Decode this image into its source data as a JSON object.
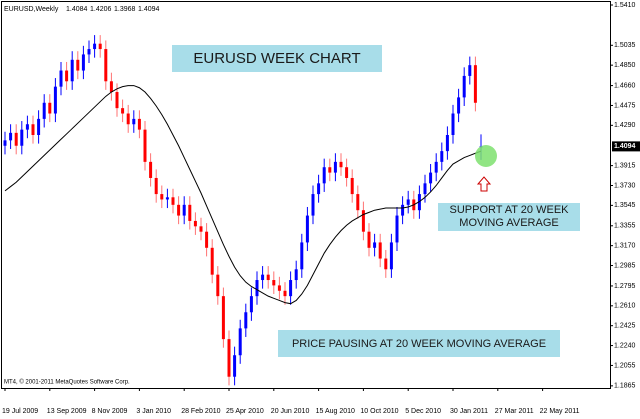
{
  "chart_data": {
    "type": "candlestick",
    "title": "EURUSD,Weekly",
    "annotations": [
      "EURUSD WEEK CHART",
      "SUPPORT AT 20 WEEK",
      "MOVING AVERAGE",
      "PRICE PAUSING AT 20 WEEK MOVING AVERAGE"
    ],
    "copyright": "MT4, © 2001-2011 MetaQuotes Software Corp.",
    "up_color": "#0000ff",
    "down_color": "#ff0000",
    "ma_color": "#000000",
    "categories": [
      "19 Jul 2009",
      null,
      null,
      null,
      null,
      null,
      null,
      null,
      "13 Sep 2009",
      null,
      null,
      null,
      null,
      null,
      null,
      null,
      "8 Nov 2009",
      null,
      null,
      null,
      null,
      null,
      null,
      null,
      "3 Jan 2010",
      null,
      null,
      null,
      null,
      null,
      null,
      null,
      "28 Feb 2010",
      null,
      null,
      null,
      null,
      null,
      null,
      null,
      "25 Apr 2010",
      null,
      null,
      null,
      null,
      null,
      null,
      null,
      "20 Jun 2010",
      null,
      null,
      null,
      null,
      null,
      null,
      null,
      "15 Aug 2010",
      null,
      null,
      null,
      null,
      null,
      null,
      null,
      "10 Oct 2010",
      null,
      null,
      null,
      null,
      null,
      null,
      null,
      "5 Dec 2010",
      null,
      null,
      null,
      null,
      null,
      null,
      null,
      "30 Jan 2011",
      null,
      null,
      null,
      null,
      null,
      null,
      null,
      "27 Mar 2011",
      null,
      null,
      null,
      null,
      null,
      null,
      null,
      "22 May 2011"
    ],
    "open": [
      1.41,
      1.415,
      1.422,
      1.41,
      1.425,
      1.43,
      1.42,
      1.435,
      1.45,
      1.44,
      1.465,
      1.48,
      1.47,
      1.49,
      1.48,
      1.495,
      1.5,
      1.505,
      1.5,
      1.47,
      1.46,
      1.445,
      1.44,
      1.43,
      1.435,
      1.425,
      1.395,
      1.38,
      1.365,
      1.36,
      1.362,
      1.355,
      1.345,
      1.355,
      1.34,
      1.335,
      1.33,
      1.315,
      1.29,
      1.27,
      1.23,
      1.195,
      1.215,
      1.24,
      1.255,
      1.27,
      1.285,
      1.29,
      1.285,
      1.28,
      1.275,
      1.27,
      1.285,
      1.295,
      1.32,
      1.345,
      1.365,
      1.375,
      1.39,
      1.385,
      1.395,
      1.39,
      1.38,
      1.365,
      1.35,
      1.33,
      1.315,
      1.32,
      1.305,
      1.295,
      1.32,
      1.345,
      1.355,
      1.36,
      1.35,
      1.365,
      1.375,
      1.385,
      1.395,
      1.405,
      1.42,
      1.44,
      1.455,
      1.475,
      1.485,
      1.4084,
      null,
      null,
      null,
      null,
      null,
      null,
      null,
      null,
      null,
      null,
      null
    ],
    "high": [
      1.423,
      1.43,
      1.43,
      1.433,
      1.438,
      1.438,
      1.443,
      1.458,
      1.458,
      1.473,
      1.488,
      1.488,
      1.498,
      1.498,
      1.503,
      1.508,
      1.513,
      1.513,
      1.508,
      1.478,
      1.468,
      1.453,
      1.448,
      1.443,
      1.443,
      1.433,
      1.403,
      1.388,
      1.373,
      1.37,
      1.37,
      1.363,
      1.363,
      1.363,
      1.348,
      1.343,
      1.338,
      1.323,
      1.298,
      1.278,
      1.238,
      1.223,
      1.248,
      1.263,
      1.278,
      1.293,
      1.298,
      1.298,
      1.293,
      1.288,
      1.283,
      1.293,
      1.303,
      1.328,
      1.353,
      1.373,
      1.383,
      1.398,
      1.398,
      1.403,
      1.403,
      1.398,
      1.388,
      1.373,
      1.358,
      1.338,
      1.328,
      1.328,
      1.313,
      1.328,
      1.353,
      1.363,
      1.368,
      1.368,
      1.373,
      1.383,
      1.393,
      1.403,
      1.413,
      1.428,
      1.448,
      1.463,
      1.483,
      1.493,
      1.493,
      1.4206,
      null,
      null,
      null,
      null,
      null,
      null,
      null,
      null,
      null,
      null,
      null
    ],
    "low": [
      1.402,
      1.407,
      1.402,
      1.402,
      1.417,
      1.412,
      1.412,
      1.427,
      1.432,
      1.432,
      1.457,
      1.462,
      1.462,
      1.472,
      1.472,
      1.487,
      1.492,
      1.492,
      1.462,
      1.452,
      1.437,
      1.432,
      1.422,
      1.422,
      1.417,
      1.387,
      1.372,
      1.357,
      1.352,
      1.352,
      1.347,
      1.337,
      1.337,
      1.332,
      1.327,
      1.322,
      1.307,
      1.282,
      1.262,
      1.222,
      1.187,
      1.187,
      1.207,
      1.232,
      1.247,
      1.262,
      1.277,
      1.277,
      1.272,
      1.267,
      1.262,
      1.262,
      1.277,
      1.287,
      1.312,
      1.337,
      1.357,
      1.367,
      1.377,
      1.377,
      1.382,
      1.372,
      1.357,
      1.342,
      1.322,
      1.307,
      1.307,
      1.297,
      1.287,
      1.287,
      1.312,
      1.337,
      1.347,
      1.342,
      1.342,
      1.357,
      1.367,
      1.377,
      1.387,
      1.397,
      1.412,
      1.432,
      1.447,
      1.467,
      1.442,
      1.3968,
      null,
      null,
      null,
      null,
      null,
      null,
      null,
      null,
      null,
      null,
      null
    ],
    "close": [
      1.415,
      1.422,
      1.41,
      1.425,
      1.43,
      1.42,
      1.435,
      1.45,
      1.44,
      1.465,
      1.48,
      1.47,
      1.49,
      1.48,
      1.495,
      1.5,
      1.505,
      1.5,
      1.47,
      1.46,
      1.445,
      1.44,
      1.43,
      1.435,
      1.425,
      1.395,
      1.38,
      1.365,
      1.36,
      1.362,
      1.355,
      1.345,
      1.355,
      1.34,
      1.335,
      1.33,
      1.315,
      1.29,
      1.27,
      1.23,
      1.195,
      1.215,
      1.24,
      1.255,
      1.27,
      1.285,
      1.29,
      1.285,
      1.28,
      1.275,
      1.27,
      1.285,
      1.295,
      1.32,
      1.345,
      1.365,
      1.375,
      1.39,
      1.385,
      1.395,
      1.39,
      1.38,
      1.365,
      1.35,
      1.33,
      1.315,
      1.32,
      1.305,
      1.295,
      1.32,
      1.345,
      1.355,
      1.36,
      1.35,
      1.365,
      1.375,
      1.385,
      1.395,
      1.405,
      1.42,
      1.44,
      1.455,
      1.475,
      1.485,
      1.45,
      1.4094,
      null,
      null,
      null,
      null,
      null,
      null,
      null,
      null,
      null,
      null,
      null
    ],
    "moving_average": [
      1.368,
      1.372,
      1.376,
      1.381,
      1.386,
      1.391,
      1.396,
      1.401,
      1.406,
      1.411,
      1.416,
      1.421,
      1.426,
      1.431,
      1.436,
      1.441,
      1.446,
      1.451,
      1.456,
      1.46,
      1.463,
      1.465,
      1.466,
      1.466,
      1.464,
      1.46,
      1.454,
      1.447,
      1.439,
      1.43,
      1.42,
      1.41,
      1.399,
      1.388,
      1.377,
      1.366,
      1.354,
      1.342,
      1.33,
      1.318,
      1.307,
      1.297,
      1.289,
      1.283,
      1.279,
      1.276,
      1.273,
      1.27,
      1.268,
      1.266,
      1.264,
      1.263,
      1.266,
      1.272,
      1.28,
      1.29,
      1.3,
      1.31,
      1.318,
      1.325,
      1.331,
      1.336,
      1.34,
      1.343,
      1.346,
      1.348,
      1.35,
      1.351,
      1.352,
      1.352,
      1.352,
      1.352,
      1.353,
      1.355,
      1.358,
      1.362,
      1.367,
      1.373,
      1.38,
      1.387,
      1.393,
      1.396,
      1.399,
      1.401,
      1.403,
      1.405,
      null,
      null,
      null,
      null,
      null,
      null,
      null,
      null,
      null,
      null,
      null
    ],
    "ylim": [
      1.1845,
      1.5438
    ],
    "yticks": [
      {
        "value": 1.541,
        "label": "1.5410"
      },
      1.5035,
      {
        "value": 1.485,
        "label": "1.4850"
      },
      {
        "value": 1.466,
        "label": "1.4660"
      },
      1.4475,
      {
        "value": 1.429,
        "label": "1.4290"
      },
      1.3915,
      {
        "value": 1.373,
        "label": "1.3730"
      },
      1.3545,
      1.3355,
      {
        "value": 1.317,
        "label": "1.3170"
      },
      1.2985,
      1.2795,
      {
        "value": 1.261,
        "label": "1.2610"
      },
      1.2425,
      {
        "value": 1.224,
        "label": "1.2240"
      },
      1.2055,
      1.1865
    ]
  }
}
